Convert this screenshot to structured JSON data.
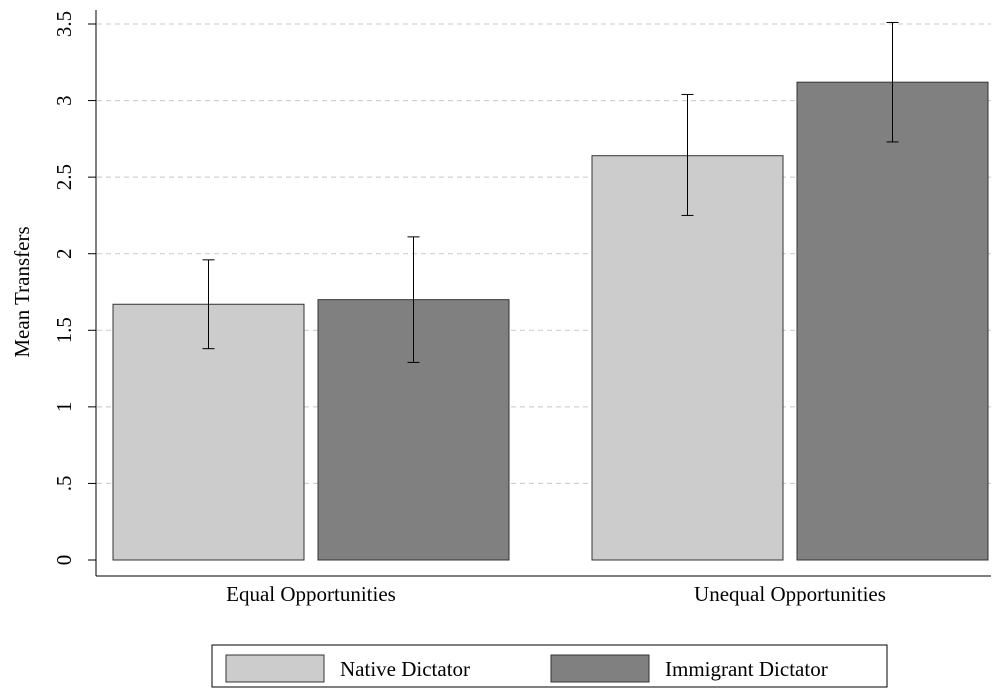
{
  "chart_data": {
    "type": "bar",
    "title": "",
    "xlabel": "",
    "ylabel": "Mean Transfers",
    "ylim": [
      0,
      3.5
    ],
    "yticks": [
      {
        "value": 0,
        "label": "0"
      },
      {
        "value": 0.5,
        "label": ".5"
      },
      {
        "value": 1,
        "label": "1"
      },
      {
        "value": 1.5,
        "label": "1.5"
      },
      {
        "value": 2,
        "label": "2"
      },
      {
        "value": 2.5,
        "label": "2.5"
      },
      {
        "value": 3,
        "label": "3"
      },
      {
        "value": 3.5,
        "label": "3.5"
      }
    ],
    "grid": true,
    "legend_position": "bottom",
    "categories": [
      "Equal Opportunities",
      "Unequal Opportunities"
    ],
    "series": [
      {
        "name": "Native Dictator",
        "color": "#cccccc",
        "values": [
          1.67,
          2.64
        ],
        "ci_low": [
          1.38,
          2.25
        ],
        "ci_high": [
          1.96,
          3.04
        ]
      },
      {
        "name": "Immigrant Dictator",
        "color": "#808080",
        "values": [
          1.7,
          3.12
        ],
        "ci_low": [
          1.29,
          2.73
        ],
        "ci_high": [
          2.11,
          3.51
        ]
      }
    ]
  }
}
